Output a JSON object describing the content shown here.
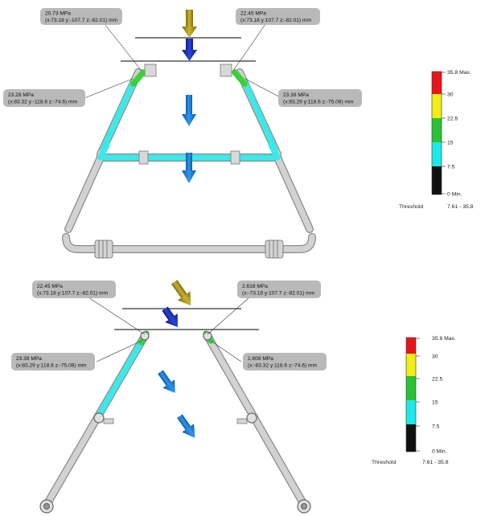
{
  "callouts": [
    {
      "id": "c1",
      "value": "20.73 MPa",
      "coords": "(x:73.18 y:-107.7 z:-82.01) mm"
    },
    {
      "id": "c2",
      "value": "22.45 MPa",
      "coords": "(x:73.18 y:107.7 z:-82.01) mm"
    },
    {
      "id": "c3",
      "value": "23.28 MPa",
      "coords": "(x:83.32 y:-118.6 z:-74.6) mm"
    },
    {
      "id": "c4",
      "value": "23.38 MPa",
      "coords": "(x:83.29 y:118.6 z:-75.08) mm"
    },
    {
      "id": "c5",
      "value": "22.45 MPa",
      "coords": "(x:73.18 y:107.7 z:-82.01) mm"
    },
    {
      "id": "c6",
      "value": "2.618 MPa",
      "coords": "(x:-73.18 y:107.7 z:-82.01) mm"
    },
    {
      "id": "c7",
      "value": "23.38 MPa",
      "coords": "(x:83.29 y:118.6 z:-75.08) mm"
    },
    {
      "id": "c8",
      "value": "1.608 MPa",
      "coords": "(x:-83.32 y:118.6 z:-74.6) mm"
    }
  ],
  "legends": [
    {
      "labels": [
        "35.8 Max.",
        "30",
        "22.5",
        "15",
        "7.5",
        "0 Min."
      ],
      "threshold_label": "Threshold",
      "threshold_range": "7.61 - 35.8"
    },
    {
      "labels": [
        "35.8 Max.",
        "30",
        "22.5",
        "15",
        "7.5",
        "0 Min."
      ],
      "threshold_label": "Threshold",
      "threshold_range": "7.61 - 35.8"
    }
  ],
  "colors": {
    "bands": [
      "#e8141c",
      "#f2ec18",
      "#29c234",
      "#1de8e8",
      "#101010"
    ],
    "tube": "#cfcfcf",
    "tube_outline": "#8a8a8a",
    "stress_cyan": "#3ee8e8",
    "stress_green": "#3ad23a",
    "callout_fill": "#b8b8b8",
    "load_arrow_gold": "#a8961a",
    "load_arrow_navy": "#1c2fb0",
    "gravity_arrow": "#1a78d0"
  }
}
